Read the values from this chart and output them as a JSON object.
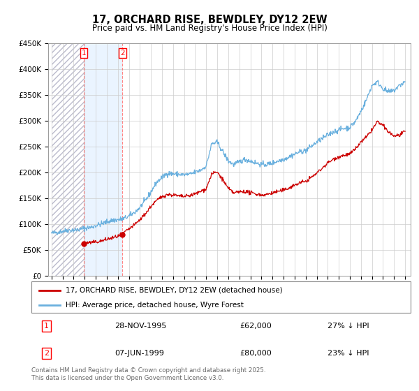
{
  "title": "17, ORCHARD RISE, BEWDLEY, DY12 2EW",
  "subtitle": "Price paid vs. HM Land Registry's House Price Index (HPI)",
  "legend_line1": "17, ORCHARD RISE, BEWDLEY, DY12 2EW (detached house)",
  "legend_line2": "HPI: Average price, detached house, Wyre Forest",
  "transaction1_date": "28-NOV-1995",
  "transaction1_price": 62000,
  "transaction1_label": "27% ↓ HPI",
  "transaction2_date": "07-JUN-1999",
  "transaction2_price": 80000,
  "transaction2_label": "23% ↓ HPI",
  "footer": "Contains HM Land Registry data © Crown copyright and database right 2025.\nThis data is licensed under the Open Government Licence v3.0.",
  "hpi_color": "#6ab0de",
  "price_color": "#cc0000",
  "ylim": [
    0,
    450000
  ],
  "yticks": [
    0,
    50000,
    100000,
    150000,
    200000,
    250000,
    300000,
    350000,
    400000,
    450000
  ],
  "t1_x": 1995.917,
  "t1_y": 62000,
  "t2_x": 1999.417,
  "t2_y": 80000,
  "xmin": 1993,
  "xmax": 2025,
  "hpi_knots": [
    [
      1993.0,
      82000
    ],
    [
      1993.5,
      84000
    ],
    [
      1994.0,
      86000
    ],
    [
      1994.5,
      88000
    ],
    [
      1995.0,
      88000
    ],
    [
      1995.5,
      89000
    ],
    [
      1996.0,
      92000
    ],
    [
      1996.5,
      93000
    ],
    [
      1997.0,
      97000
    ],
    [
      1997.5,
      100000
    ],
    [
      1998.0,
      104000
    ],
    [
      1998.5,
      107000
    ],
    [
      1999.0,
      108000
    ],
    [
      1999.5,
      110000
    ],
    [
      2000.0,
      115000
    ],
    [
      2000.5,
      122000
    ],
    [
      2001.0,
      132000
    ],
    [
      2001.5,
      145000
    ],
    [
      2002.0,
      162000
    ],
    [
      2002.5,
      180000
    ],
    [
      2003.0,
      190000
    ],
    [
      2003.5,
      198000
    ],
    [
      2004.0,
      197000
    ],
    [
      2004.5,
      196000
    ],
    [
      2005.0,
      195000
    ],
    [
      2005.5,
      196000
    ],
    [
      2006.0,
      200000
    ],
    [
      2006.5,
      204000
    ],
    [
      2007.0,
      212000
    ],
    [
      2007.5,
      255000
    ],
    [
      2008.0,
      258000
    ],
    [
      2008.5,
      240000
    ],
    [
      2009.0,
      222000
    ],
    [
      2009.5,
      215000
    ],
    [
      2010.0,
      220000
    ],
    [
      2010.5,
      225000
    ],
    [
      2011.0,
      222000
    ],
    [
      2011.5,
      218000
    ],
    [
      2012.0,
      215000
    ],
    [
      2012.5,
      215000
    ],
    [
      2013.0,
      218000
    ],
    [
      2013.5,
      222000
    ],
    [
      2014.0,
      225000
    ],
    [
      2014.5,
      230000
    ],
    [
      2015.0,
      235000
    ],
    [
      2015.5,
      240000
    ],
    [
      2016.0,
      242000
    ],
    [
      2016.5,
      250000
    ],
    [
      2017.0,
      258000
    ],
    [
      2017.5,
      265000
    ],
    [
      2018.0,
      272000
    ],
    [
      2018.5,
      278000
    ],
    [
      2019.0,
      282000
    ],
    [
      2019.5,
      285000
    ],
    [
      2020.0,
      287000
    ],
    [
      2020.5,
      298000
    ],
    [
      2021.0,
      318000
    ],
    [
      2021.5,
      340000
    ],
    [
      2022.0,
      368000
    ],
    [
      2022.5,
      375000
    ],
    [
      2023.0,
      362000
    ],
    [
      2023.5,
      355000
    ],
    [
      2024.0,
      358000
    ],
    [
      2024.5,
      368000
    ],
    [
      2025.0,
      375000
    ]
  ],
  "price_knots": [
    [
      1995.917,
      62000
    ],
    [
      1996.0,
      63000
    ],
    [
      1996.5,
      64000
    ],
    [
      1997.0,
      65000
    ],
    [
      1997.5,
      67000
    ],
    [
      1998.0,
      70000
    ],
    [
      1998.5,
      73000
    ],
    [
      1999.0,
      76000
    ],
    [
      1999.417,
      80000
    ],
    [
      1999.5,
      82000
    ],
    [
      2000.0,
      90000
    ],
    [
      2000.5,
      98000
    ],
    [
      2001.0,
      108000
    ],
    [
      2001.5,
      120000
    ],
    [
      2002.0,
      134000
    ],
    [
      2002.5,
      145000
    ],
    [
      2003.0,
      153000
    ],
    [
      2003.5,
      157000
    ],
    [
      2004.0,
      156000
    ],
    [
      2004.5,
      154000
    ],
    [
      2005.0,
      153000
    ],
    [
      2005.5,
      155000
    ],
    [
      2006.0,
      158000
    ],
    [
      2006.5,
      163000
    ],
    [
      2007.0,
      168000
    ],
    [
      2007.5,
      197000
    ],
    [
      2008.0,
      200000
    ],
    [
      2008.5,
      186000
    ],
    [
      2009.0,
      168000
    ],
    [
      2009.5,
      160000
    ],
    [
      2010.0,
      162000
    ],
    [
      2010.5,
      163000
    ],
    [
      2011.0,
      160000
    ],
    [
      2011.5,
      158000
    ],
    [
      2012.0,
      156000
    ],
    [
      2012.5,
      157000
    ],
    [
      2013.0,
      160000
    ],
    [
      2013.5,
      163000
    ],
    [
      2014.0,
      165000
    ],
    [
      2014.5,
      170000
    ],
    [
      2015.0,
      175000
    ],
    [
      2015.5,
      180000
    ],
    [
      2016.0,
      182000
    ],
    [
      2016.5,
      190000
    ],
    [
      2017.0,
      198000
    ],
    [
      2017.5,
      208000
    ],
    [
      2018.0,
      218000
    ],
    [
      2018.5,
      225000
    ],
    [
      2019.0,
      230000
    ],
    [
      2019.5,
      233000
    ],
    [
      2020.0,
      235000
    ],
    [
      2020.5,
      245000
    ],
    [
      2021.0,
      258000
    ],
    [
      2021.5,
      268000
    ],
    [
      2022.0,
      282000
    ],
    [
      2022.5,
      298000
    ],
    [
      2023.0,
      290000
    ],
    [
      2023.5,
      278000
    ],
    [
      2024.0,
      270000
    ],
    [
      2024.5,
      272000
    ],
    [
      2025.0,
      278000
    ]
  ]
}
